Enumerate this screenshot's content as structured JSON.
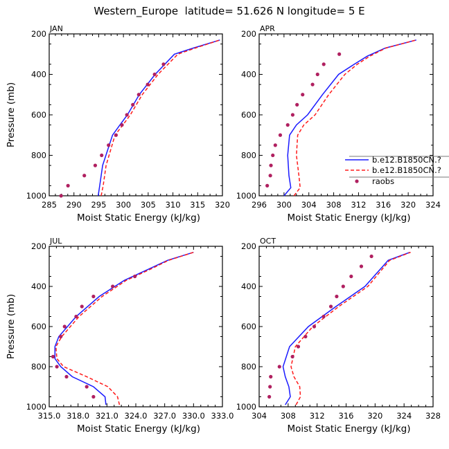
{
  "title": "Western_Europe  latitude= 51.626 N longitude= 5 E",
  "colors": {
    "series_1": "#1a1aff",
    "series_2": "#ff1a1a",
    "raobs": "#b02060"
  },
  "legend": {
    "placement": "right of APR panel",
    "entries": [
      "b.e12.B1850CN.?",
      "b.e12.B1850CN.?",
      "raobs"
    ]
  },
  "chart_data": [
    {
      "type": "line",
      "panel": "JAN",
      "xlabel": "Moist Static Energy (kJ/kg)",
      "ylabel": "Pressure (mb)",
      "xlim": [
        285,
        320
      ],
      "ylim": [
        1000,
        200
      ],
      "y_reversed": true,
      "xticks": [
        "285",
        "290",
        "295",
        "300",
        "305",
        "310",
        "315",
        "320"
      ],
      "yticks": [
        "200",
        "400",
        "600",
        "800",
        "1000"
      ],
      "series": [
        {
          "style": "solid",
          "color": "#1a1aff",
          "x": [
            294.9,
            295.2,
            295.5,
            295.8,
            297.8,
            299.3,
            300.8,
            303.2,
            306.4,
            310.3,
            314.1,
            319.5
          ],
          "y": [
            1000,
            950,
            900,
            850,
            700,
            650,
            600,
            500,
            400,
            300,
            270,
            230
          ]
        },
        {
          "style": "dashed",
          "color": "#ff1a1a",
          "x": [
            295.5,
            295.9,
            296.2,
            296.5,
            298.3,
            299.9,
            301.4,
            303.8,
            307.0,
            311.0,
            314.5,
            319.5
          ],
          "y": [
            1000,
            950,
            900,
            850,
            700,
            650,
            600,
            500,
            400,
            300,
            270,
            230
          ]
        },
        {
          "style": "markers",
          "color": "#b02060",
          "name": "raobs",
          "x": [
            287.4,
            288.8,
            292.1,
            294.3,
            295.6,
            297.0,
            298.5,
            299.7,
            300.7,
            301.9,
            303.1,
            304.9,
            306.3,
            308.1
          ],
          "y": [
            1000,
            950,
            900,
            850,
            800,
            750,
            700,
            650,
            600,
            550,
            500,
            450,
            400,
            350
          ]
        }
      ]
    },
    {
      "type": "line",
      "panel": "APR",
      "xlabel": "Moist Static Energy (kJ/kg)",
      "ylabel": "",
      "xlim": [
        296,
        324
      ],
      "ylim": [
        1000,
        200
      ],
      "y_reversed": true,
      "xticks": [
        "296",
        "300",
        "304",
        "308",
        "312",
        "316",
        "320",
        "324"
      ],
      "yticks": [
        "200",
        "400",
        "600",
        "800",
        "1000"
      ],
      "series": [
        {
          "style": "solid",
          "color": "#1a1aff",
          "x": [
            300.0,
            301.1,
            300.8,
            300.6,
            300.9,
            302.0,
            303.8,
            306.2,
            308.8,
            311.3,
            313.4,
            316.3,
            321.3
          ],
          "y": [
            1000,
            960,
            900,
            800,
            700,
            650,
            600,
            500,
            400,
            350,
            310,
            270,
            230
          ]
        },
        {
          "style": "dashed",
          "color": "#ff1a1a",
          "x": [
            301.6,
            302.6,
            302.4,
            302.0,
            302.2,
            303.2,
            305.0,
            307.2,
            309.8,
            311.8,
            313.8,
            316.4,
            321.3
          ],
          "y": [
            1000,
            960,
            900,
            800,
            700,
            650,
            600,
            500,
            400,
            350,
            310,
            270,
            230
          ]
        },
        {
          "style": "markers",
          "color": "#b02060",
          "name": "raobs",
          "x": [
            297.3,
            297.8,
            297.9,
            298.2,
            298.6,
            299.4,
            300.6,
            301.4,
            302.1,
            303.0,
            304.6,
            305.4,
            306.4,
            308.9
          ],
          "y": [
            950,
            900,
            850,
            800,
            750,
            700,
            650,
            600,
            550,
            500,
            450,
            400,
            350,
            300
          ]
        }
      ]
    },
    {
      "type": "line",
      "panel": "JUL",
      "xlabel": "Moist Static Energy (kJ/kg)",
      "ylabel": "Pressure (mb)",
      "xlim": [
        315,
        333
      ],
      "ylim": [
        1000,
        200
      ],
      "y_reversed": true,
      "xticks": [
        "315.0",
        "318.0",
        "321.0",
        "324.0",
        "327.0",
        "330.0",
        "333.0"
      ],
      "yticks": [
        "200",
        "400",
        "600",
        "800",
        "1000"
      ],
      "series": [
        {
          "style": "solid",
          "color": "#1a1aff",
          "x": [
            320.9,
            320.8,
            319.6,
            317.4,
            316.2,
            315.6,
            315.6,
            316.0,
            317.8,
            320.2,
            322.8,
            325.5,
            327.3,
            330.0
          ],
          "y": [
            990,
            950,
            900,
            850,
            800,
            760,
            700,
            650,
            550,
            450,
            370,
            310,
            270,
            230
          ]
        },
        {
          "style": "dashed",
          "color": "#ff1a1a",
          "x": [
            322.3,
            322.1,
            321.1,
            318.9,
            316.5,
            315.8,
            315.7,
            316.3,
            318.1,
            320.5,
            323.0,
            325.7,
            327.4,
            330.0
          ],
          "y": [
            990,
            950,
            900,
            850,
            800,
            760,
            700,
            650,
            550,
            450,
            370,
            310,
            270,
            230
          ]
        },
        {
          "style": "markers",
          "color": "#b02060",
          "name": "raobs",
          "x": [
            319.6,
            318.9,
            316.8,
            315.8,
            315.4,
            316.2,
            316.6,
            317.8,
            318.4,
            319.6,
            321.6,
            323.9
          ],
          "y": [
            950,
            900,
            850,
            800,
            750,
            650,
            600,
            550,
            500,
            450,
            400,
            350
          ]
        }
      ]
    },
    {
      "type": "line",
      "panel": "OCT",
      "xlabel": "Moist Static Energy (kJ/kg)",
      "ylabel": "",
      "xlim": [
        304,
        328
      ],
      "ylim": [
        1000,
        200
      ],
      "y_reversed": true,
      "xticks": [
        "304",
        "308",
        "312",
        "316",
        "320",
        "324",
        "328"
      ],
      "yticks": [
        "200",
        "400",
        "600",
        "800",
        "1000"
      ],
      "series": [
        {
          "style": "solid",
          "color": "#1a1aff",
          "x": [
            307.6,
            308.3,
            308.1,
            307.6,
            307.3,
            308.2,
            310.8,
            314.6,
            318.6,
            321.8,
            324.8
          ],
          "y": [
            990,
            950,
            900,
            850,
            800,
            700,
            600,
            500,
            400,
            270,
            230
          ]
        },
        {
          "style": "dashed",
          "color": "#ff1a1a",
          "x": [
            309.1,
            309.7,
            309.6,
            308.8,
            308.4,
            309.0,
            311.4,
            315.0,
            319.0,
            322.0,
            324.9
          ],
          "y": [
            990,
            950,
            900,
            850,
            800,
            700,
            600,
            500,
            400,
            270,
            230
          ]
        },
        {
          "style": "markers",
          "color": "#b02060",
          "name": "raobs",
          "x": [
            305.4,
            305.5,
            305.6,
            306.8,
            308.6,
            309.4,
            310.4,
            311.6,
            312.9,
            313.9,
            314.7,
            315.6,
            316.7,
            318.1,
            319.5
          ],
          "y": [
            950,
            900,
            850,
            800,
            750,
            700,
            650,
            600,
            550,
            500,
            450,
            400,
            350,
            300,
            250
          ]
        }
      ]
    }
  ]
}
